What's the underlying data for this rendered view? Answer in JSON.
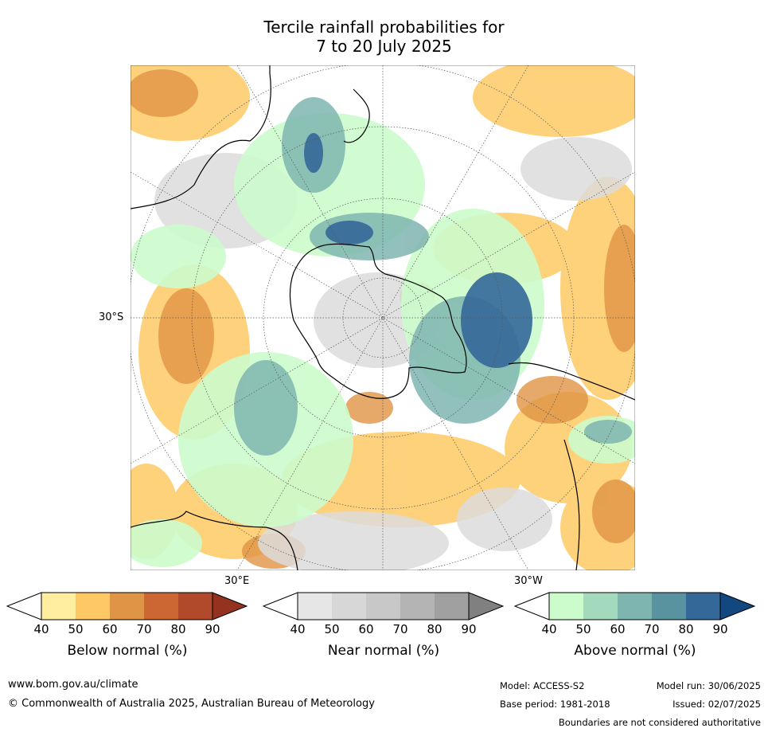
{
  "title_line1": "Tercile rainfall probabilities for",
  "title_line2": "7 to 20 July 2025",
  "map": {
    "lat_label": "30°S",
    "lon_label_east": "30°E",
    "lon_label_west": "30°W"
  },
  "colorbars": [
    {
      "title": "Below normal (%)",
      "ticks": [
        "40",
        "50",
        "60",
        "70",
        "80",
        "90"
      ],
      "colors": [
        "#ffeda0",
        "#fec965",
        "#e09445",
        "#cc6633",
        "#b04a2a",
        "#93321f"
      ]
    },
    {
      "title": "Near normal (%)",
      "ticks": [
        "40",
        "50",
        "60",
        "70",
        "80",
        "90"
      ],
      "colors": [
        "#e6e6e6",
        "#d7d7d7",
        "#c8c8c8",
        "#b4b4b4",
        "#a0a0a0",
        "#808080"
      ]
    },
    {
      "title": "Above normal (%)",
      "ticks": [
        "40",
        "50",
        "60",
        "70",
        "80",
        "90"
      ],
      "colors": [
        "#ccfccc",
        "#a3d9bc",
        "#7fb5b0",
        "#5a93a0",
        "#346899",
        "#12477f"
      ]
    }
  ],
  "footer": {
    "website": "www.bom.gov.au/climate",
    "copyright": "© Commonwealth of Australia 2025, Australian Bureau of Meteorology",
    "model": "Model: ACCESS-S2",
    "base_period": "Base period: 1981-2018",
    "model_run": "Model run: 30/06/2025",
    "issued": "Issued: 02/07/2025",
    "disclaimer": "Boundaries are not considered authoritative"
  }
}
